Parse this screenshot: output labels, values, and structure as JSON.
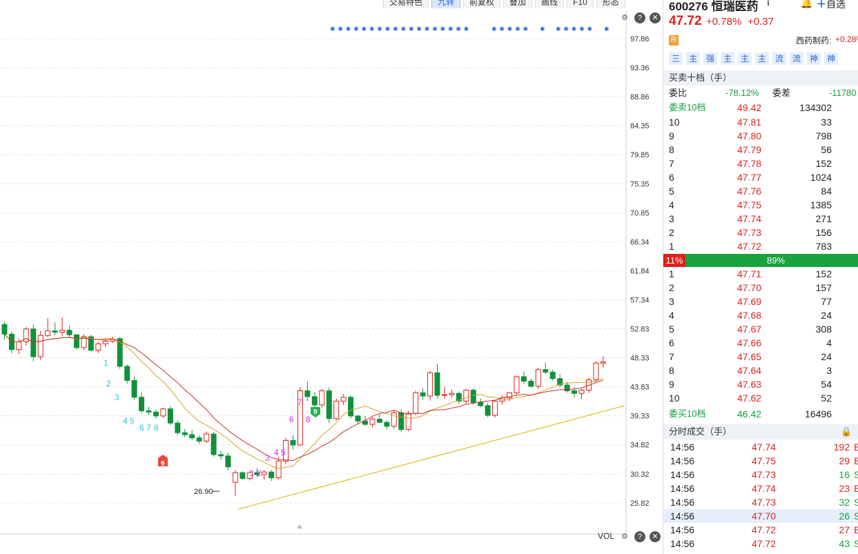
{
  "toolbar": [
    "交易特色",
    "九转",
    "前复权",
    "叠加",
    "画线",
    "F10",
    "形态"
  ],
  "toolbar_active": "九转",
  "chart_icons": {
    "settings": "⚙",
    "help": "?",
    "close": "✕"
  },
  "vol_label": "VOL",
  "price_axis": [
    "97.86",
    "93.36",
    "88.86",
    "84.35",
    "79.85",
    "75.35",
    "70.85",
    "66.34",
    "61.84",
    "57.34",
    "52.83",
    "48.33",
    "43.83",
    "39.33",
    "34.82",
    "30.32",
    "25.82"
  ],
  "low_label": "26.90",
  "badge_9_red": "9",
  "badge_9_green": "9",
  "stock": {
    "code_name": "600276 恒瑞医药",
    "price": "47.72",
    "change_pct": "+0.78%",
    "change": "+0.37",
    "r_badge": "R",
    "sector": "西药制药:",
    "sector_change": "+0.28%"
  },
  "tags": [
    "三",
    "主",
    "强",
    "主",
    "主",
    "主",
    "流",
    "流",
    "神",
    "神"
  ],
  "order_book": {
    "title": "买卖十档（手）",
    "ratio_label": "委比",
    "ratio_value": "-78.12%",
    "diff_label": "委差",
    "diff_value": "-11780",
    "sell10_label": "委卖10档",
    "sell10_price": "49.42",
    "sell10_vol": "134302",
    "asks": [
      {
        "lvl": "10",
        "price": "47.81",
        "vol": "33"
      },
      {
        "lvl": "9",
        "price": "47.80",
        "vol": "798"
      },
      {
        "lvl": "8",
        "price": "47.79",
        "vol": "56"
      },
      {
        "lvl": "7",
        "price": "47.78",
        "vol": "152"
      },
      {
        "lvl": "6",
        "price": "47.77",
        "vol": "1024"
      },
      {
        "lvl": "5",
        "price": "47.76",
        "vol": "84"
      },
      {
        "lvl": "4",
        "price": "47.75",
        "vol": "1385"
      },
      {
        "lvl": "3",
        "price": "47.74",
        "vol": "271"
      },
      {
        "lvl": "2",
        "price": "47.73",
        "vol": "156"
      },
      {
        "lvl": "1",
        "price": "47.72",
        "vol": "783"
      }
    ],
    "bar_left": "11%",
    "bar_right": "89%",
    "bids": [
      {
        "lvl": "1",
        "price": "47.71",
        "vol": "152"
      },
      {
        "lvl": "2",
        "price": "47.70",
        "vol": "157"
      },
      {
        "lvl": "3",
        "price": "47.69",
        "vol": "77"
      },
      {
        "lvl": "4",
        "price": "47.68",
        "vol": "24"
      },
      {
        "lvl": "5",
        "price": "47.67",
        "vol": "308"
      },
      {
        "lvl": "6",
        "price": "47.66",
        "vol": "4"
      },
      {
        "lvl": "7",
        "price": "47.65",
        "vol": "24"
      },
      {
        "lvl": "8",
        "price": "47.64",
        "vol": "3"
      },
      {
        "lvl": "9",
        "price": "47.63",
        "vol": "54"
      },
      {
        "lvl": "10",
        "price": "47.62",
        "vol": "52"
      }
    ],
    "buy10_label": "委买10档",
    "buy10_price": "46.42",
    "buy10_vol": "16496"
  },
  "ticks_title": "分时成交（手）",
  "ticks": [
    {
      "time": "14:56",
      "price": "47.74",
      "vol": "192",
      "side": "B"
    },
    {
      "time": "14:56",
      "price": "47.75",
      "vol": "29",
      "side": "B"
    },
    {
      "time": "14:56",
      "price": "47.73",
      "vol": "16",
      "side": "S"
    },
    {
      "time": "14:56",
      "price": "47.74",
      "vol": "23",
      "side": "B"
    },
    {
      "time": "14:56",
      "price": "47.73",
      "vol": "32",
      "side": "S"
    },
    {
      "time": "14:56",
      "price": "47.70",
      "vol": "26",
      "side": "S"
    },
    {
      "time": "14:56",
      "price": "47.72",
      "vol": "27",
      "side": "B"
    },
    {
      "time": "14:56",
      "price": "47.72",
      "vol": "43",
      "side": "S"
    }
  ],
  "top_icons": {
    "bell": "bell-icon",
    "add_label": "自选"
  },
  "chart_data": {
    "type": "candlestick",
    "y_range": [
      25.82,
      97.86
    ],
    "candles": [
      [
        53.5,
        54.0,
        51.2,
        52.0
      ],
      [
        52.0,
        52.4,
        49.0,
        49.6
      ],
      [
        49.6,
        51.3,
        48.9,
        50.8
      ],
      [
        50.8,
        53.1,
        50.2,
        52.8
      ],
      [
        52.8,
        53.5,
        47.8,
        48.5
      ],
      [
        48.5,
        52.5,
        48.0,
        51.8
      ],
      [
        51.8,
        54.5,
        51.5,
        52.5
      ],
      [
        52.5,
        53.8,
        51.8,
        52.3
      ],
      [
        52.3,
        54.6,
        51.6,
        52.6
      ],
      [
        52.6,
        53.3,
        51.5,
        51.9
      ],
      [
        51.9,
        52.0,
        49.6,
        49.9
      ],
      [
        49.9,
        52.0,
        49.5,
        51.6
      ],
      [
        51.6,
        51.9,
        49.3,
        49.5
      ],
      [
        49.5,
        50.8,
        49.1,
        50.5
      ],
      [
        50.5,
        51.4,
        50.0,
        50.9
      ],
      [
        50.9,
        51.6,
        50.6,
        51.2
      ],
      [
        51.3,
        51.6,
        46.6,
        47.0
      ],
      [
        47.0,
        47.3,
        44.3,
        44.8
      ],
      [
        44.8,
        45.4,
        41.8,
        42.2
      ],
      [
        42.2,
        42.9,
        39.7,
        40.1
      ],
      [
        40.1,
        40.7,
        39.4,
        39.9
      ],
      [
        39.9,
        40.3,
        38.9,
        39.3
      ],
      [
        39.3,
        40.6,
        39.0,
        40.4
      ],
      [
        40.4,
        40.8,
        37.9,
        38.2
      ],
      [
        38.2,
        38.6,
        36.3,
        36.7
      ],
      [
        36.7,
        37.3,
        36.0,
        36.4
      ],
      [
        36.4,
        37.1,
        35.6,
        35.9
      ],
      [
        35.9,
        36.3,
        35.0,
        35.4
      ],
      [
        35.4,
        36.9,
        35.1,
        36.5
      ],
      [
        36.5,
        36.8,
        33.0,
        33.3
      ],
      [
        33.3,
        33.9,
        32.5,
        33.1
      ],
      [
        33.1,
        33.6,
        30.9,
        31.4
      ],
      [
        29.0,
        30.9,
        26.9,
        30.5
      ],
      [
        30.5,
        30.7,
        29.4,
        29.6
      ],
      [
        29.6,
        30.8,
        29.3,
        30.5
      ],
      [
        30.5,
        31.2,
        29.8,
        30.2
      ],
      [
        30.2,
        30.9,
        29.4,
        30.6
      ],
      [
        30.6,
        30.9,
        29.2,
        29.7
      ],
      [
        29.7,
        32.9,
        29.5,
        32.3
      ],
      [
        32.3,
        35.9,
        31.8,
        35.5
      ],
      [
        35.5,
        36.3,
        34.1,
        34.8
      ],
      [
        34.8,
        43.8,
        34.6,
        43.2
      ],
      [
        43.2,
        44.6,
        41.6,
        42.3
      ],
      [
        42.3,
        43.0,
        40.5,
        41.0
      ],
      [
        41.0,
        43.5,
        40.6,
        43.2
      ],
      [
        43.2,
        43.7,
        38.2,
        38.9
      ],
      [
        38.9,
        42.0,
        38.6,
        41.6
      ],
      [
        41.6,
        42.7,
        41.0,
        42.2
      ],
      [
        42.2,
        42.5,
        38.9,
        39.3
      ],
      [
        39.3,
        39.5,
        38.1,
        38.5
      ],
      [
        38.5,
        39.3,
        37.7,
        38.0
      ],
      [
        38.0,
        39.1,
        37.5,
        38.8
      ],
      [
        38.8,
        39.6,
        38.2,
        38.3
      ],
      [
        38.3,
        38.6,
        37.2,
        37.7
      ],
      [
        37.7,
        40.1,
        37.3,
        39.8
      ],
      [
        39.8,
        40.3,
        36.8,
        37.2
      ],
      [
        37.2,
        40.1,
        36.9,
        39.7
      ],
      [
        39.7,
        43.2,
        39.4,
        42.9
      ],
      [
        42.9,
        43.6,
        41.8,
        42.4
      ],
      [
        42.4,
        46.3,
        41.7,
        46.0
      ],
      [
        46.0,
        47.4,
        42.0,
        42.5
      ],
      [
        42.5,
        43.8,
        42.0,
        42.6
      ],
      [
        42.6,
        43.4,
        42.1,
        42.8
      ],
      [
        42.8,
        43.1,
        41.2,
        41.6
      ],
      [
        41.6,
        43.5,
        41.2,
        43.3
      ],
      [
        43.3,
        43.6,
        41.1,
        41.4
      ],
      [
        41.4,
        42.0,
        40.6,
        40.9
      ],
      [
        40.9,
        41.3,
        39.1,
        39.4
      ],
      [
        39.4,
        41.8,
        39.1,
        41.6
      ],
      [
        41.6,
        42.5,
        41.1,
        42.1
      ],
      [
        42.1,
        43.0,
        41.6,
        42.9
      ],
      [
        42.9,
        45.6,
        42.6,
        45.4
      ],
      [
        45.4,
        46.2,
        44.3,
        44.7
      ],
      [
        44.7,
        45.1,
        43.7,
        43.9
      ],
      [
        43.9,
        46.8,
        43.5,
        46.5
      ],
      [
        46.5,
        47.6,
        45.8,
        46.1
      ],
      [
        46.1,
        46.5,
        44.8,
        45.1
      ],
      [
        45.1,
        45.8,
        43.7,
        44.1
      ],
      [
        44.1,
        44.6,
        42.9,
        43.2
      ],
      [
        43.2,
        43.8,
        42.2,
        42.8
      ],
      [
        42.8,
        43.5,
        41.9,
        43.3
      ],
      [
        43.3,
        45.2,
        42.9,
        44.9
      ],
      [
        44.9,
        47.8,
        44.5,
        47.5
      ],
      [
        47.5,
        48.6,
        46.8,
        47.7
      ]
    ]
  }
}
